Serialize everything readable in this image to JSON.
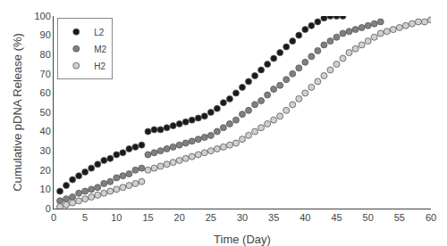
{
  "chart_data": {
    "type": "scatter",
    "xlabel": "Time (Day)",
    "ylabel": "Cumulative pDNA Release (%)",
    "xlim": [
      0,
      60
    ],
    "ylim": [
      0,
      100
    ],
    "xticks": [
      0,
      5,
      10,
      15,
      20,
      25,
      30,
      35,
      40,
      45,
      50,
      55,
      60
    ],
    "yticks": [
      0,
      10,
      20,
      30,
      40,
      50,
      60,
      70,
      80,
      90,
      100
    ],
    "grid": false,
    "legend": "upper left",
    "marker": "circle",
    "series": [
      {
        "name": "L2",
        "color": "#1a1a1a",
        "x": [
          1,
          2,
          3,
          4,
          5,
          6,
          7,
          8,
          9,
          10,
          11,
          12,
          13,
          14,
          15,
          16,
          17,
          18,
          19,
          20,
          21,
          22,
          23,
          24,
          25,
          26,
          27,
          28,
          29,
          30,
          31,
          32,
          33,
          34,
          35,
          36,
          37,
          38,
          39,
          40,
          41,
          42,
          43,
          44,
          45,
          46
        ],
        "values": [
          9,
          12,
          15,
          17,
          19,
          21,
          23,
          25,
          26,
          28,
          29,
          31,
          32,
          33,
          40,
          41,
          41,
          42,
          43,
          44,
          45,
          46,
          47,
          48,
          50,
          52,
          55,
          57,
          60,
          63,
          66,
          69,
          72,
          75,
          78,
          81,
          84,
          87,
          90,
          93,
          95,
          97,
          99,
          100,
          100,
          100
        ]
      },
      {
        "name": "M2",
        "color": "#808080",
        "x": [
          1,
          2,
          3,
          4,
          5,
          6,
          7,
          8,
          9,
          10,
          11,
          12,
          13,
          14,
          15,
          16,
          17,
          18,
          19,
          20,
          21,
          22,
          23,
          24,
          25,
          26,
          27,
          28,
          29,
          30,
          31,
          32,
          33,
          34,
          35,
          36,
          37,
          38,
          39,
          40,
          41,
          42,
          43,
          44,
          45,
          46,
          47,
          48,
          49,
          50,
          51,
          52
        ],
        "values": [
          4,
          5,
          6,
          8,
          9,
          10,
          11,
          13,
          14,
          16,
          17,
          18,
          20,
          21,
          28,
          29,
          30,
          31,
          32,
          33,
          34,
          35,
          36,
          37,
          38,
          40,
          42,
          44,
          46,
          49,
          51,
          54,
          56,
          59,
          62,
          64,
          67,
          70,
          73,
          76,
          79,
          82,
          85,
          87,
          89,
          91,
          92,
          93,
          94,
          95,
          96,
          97
        ]
      },
      {
        "name": "H2",
        "color": "#d0d0d0",
        "x": [
          1,
          2,
          3,
          4,
          5,
          6,
          7,
          8,
          9,
          10,
          11,
          12,
          13,
          14,
          15,
          16,
          17,
          18,
          19,
          20,
          21,
          22,
          23,
          24,
          25,
          26,
          27,
          28,
          29,
          30,
          31,
          32,
          33,
          34,
          35,
          36,
          37,
          38,
          39,
          40,
          41,
          42,
          43,
          44,
          45,
          46,
          47,
          48,
          49,
          50,
          51,
          52,
          53,
          54,
          55,
          56,
          57,
          58,
          59,
          60
        ],
        "values": [
          1,
          2,
          3,
          4,
          5,
          6,
          7,
          8,
          9,
          10,
          11,
          12,
          13,
          14,
          20,
          21,
          22,
          23,
          24,
          25,
          26,
          27,
          28,
          29,
          30,
          31,
          32,
          33,
          34,
          36,
          38,
          40,
          42,
          44,
          46,
          48,
          51,
          54,
          57,
          60,
          63,
          66,
          69,
          72,
          75,
          78,
          81,
          83,
          85,
          87,
          89,
          91,
          92,
          93,
          94,
          95,
          96,
          97,
          97,
          98
        ]
      }
    ]
  }
}
